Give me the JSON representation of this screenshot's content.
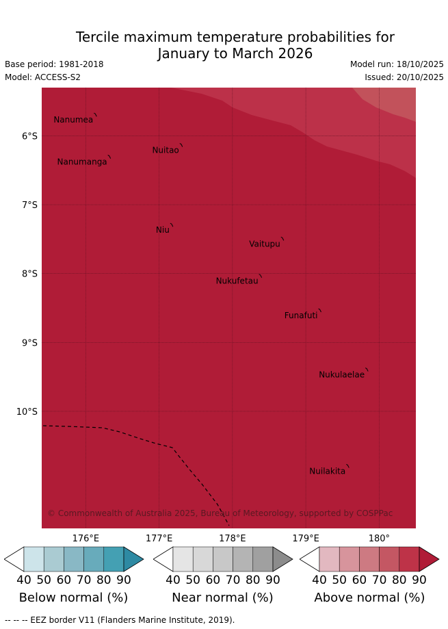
{
  "title_line1": "Tercile maximum temperature probabilities for",
  "title_line2": "January to March 2026",
  "base_period": "Base period: 1981-2018",
  "model": "Model: ACCESS-S2",
  "model_run": "Model run: 18/10/2025",
  "issued": "Issued: 20/10/2025",
  "map": {
    "background_color": "#b01c37",
    "lon_range": [
      175.4,
      180.5
    ],
    "lat_range": [
      -11.7,
      -5.3
    ],
    "lon_ticks": [
      {
        "value": 176,
        "label": "176°E"
      },
      {
        "value": 177,
        "label": "177°E"
      },
      {
        "value": 178,
        "label": "178°E"
      },
      {
        "value": 179,
        "label": "179°E"
      },
      {
        "value": 180,
        "label": "180°"
      }
    ],
    "lat_ticks": [
      {
        "value": -6,
        "label": "6°S"
      },
      {
        "value": -7,
        "label": "7°S"
      },
      {
        "value": -8,
        "label": "8°S"
      },
      {
        "value": -9,
        "label": "9°S"
      },
      {
        "value": -10,
        "label": "10°S"
      }
    ],
    "places": [
      {
        "name": "Nanumea",
        "lon": 176.13,
        "lat": -5.68
      },
      {
        "name": "Nuitao",
        "lon": 177.3,
        "lat": -6.12
      },
      {
        "name": "Nanumanga",
        "lon": 176.32,
        "lat": -6.29
      },
      {
        "name": "Niu",
        "lon": 177.17,
        "lat": -7.28
      },
      {
        "name": "Vaitupu",
        "lon": 178.68,
        "lat": -7.48
      },
      {
        "name": "Nukufetau",
        "lon": 178.38,
        "lat": -8.02
      },
      {
        "name": "Funafuti",
        "lon": 179.19,
        "lat": -8.52
      },
      {
        "name": "Nukulaelae",
        "lon": 179.83,
        "lat": -9.38
      },
      {
        "name": "Nuilakita",
        "lon": 179.57,
        "lat": -10.78
      }
    ],
    "copyright": "© Commonwealth of Australia 2025, Bureau of Meteorology, supported by COSPPac"
  },
  "colorbars": [
    {
      "name": "below",
      "title": "Below normal (%)",
      "colors": [
        "#cde4ea",
        "#aacbd2",
        "#89b8c5",
        "#68abbb",
        "#44a0b3"
      ],
      "tip": "#2e8aa3"
    },
    {
      "name": "near",
      "title": "Near normal (%)",
      "colors": [
        "#e5e5e5",
        "#d8d8d8",
        "#c8c8c8",
        "#b4b4b4",
        "#a0a0a0"
      ],
      "tip": "#8c8c8c"
    },
    {
      "name": "above",
      "title": "Above normal (%)",
      "colors": [
        "#e2b8c0",
        "#d7949c",
        "#cd7a82",
        "#c45763",
        "#be3348"
      ],
      "tip": "#b01c37"
    }
  ],
  "colorbar_ticks": [
    "40",
    "50",
    "60",
    "70",
    "80",
    "90"
  ],
  "footnote": "-- -- -- EEZ border V11 (Flanders Marine Institute, 2019)."
}
